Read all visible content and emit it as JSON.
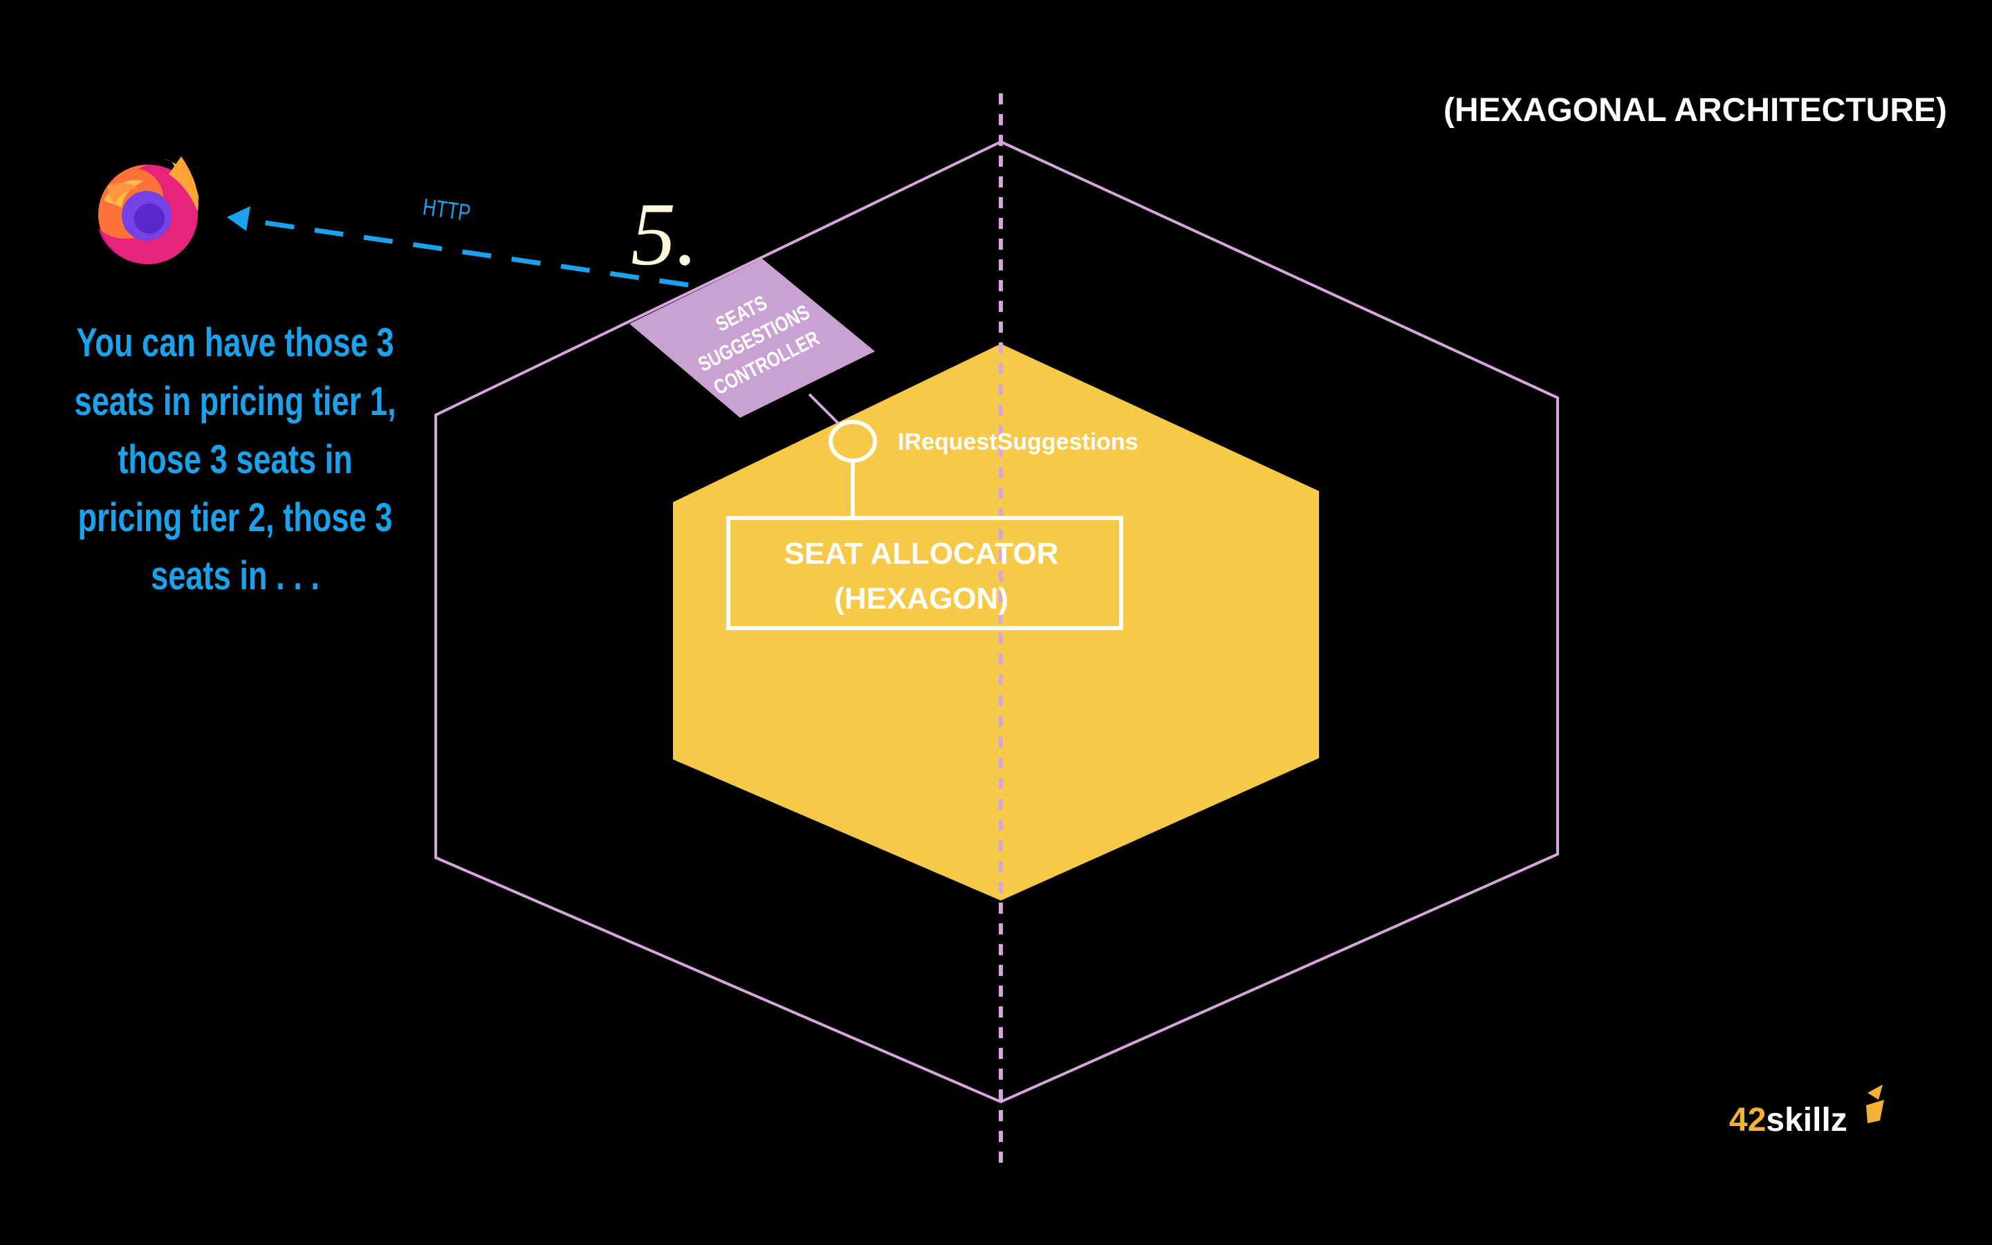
{
  "slide": {
    "title": "(HEXAGONAL ARCHITECTURE)",
    "step_number": "5.",
    "protocol_label": "HTTP",
    "response_text": [
      "You can have those 3",
      "seats in pricing tier 1,",
      "those 3 seats in",
      "pricing tier 2, those 3",
      "seats in . . ."
    ],
    "adapter_label": [
      "SEATS",
      "SUGGESTIONS",
      "CONTROLLER"
    ],
    "port_label": "IRequestSuggestions",
    "hexagon_label": [
      "SEAT ALLOCATOR",
      "(HEXAGON)"
    ],
    "logo": {
      "prefix": "42",
      "suffix": "skillz"
    }
  },
  "colors": {
    "background": "#000000",
    "outer_hexagon": "#d6a6dc",
    "inner_hexagon": "#f7c948",
    "adapter": "#c9a2d1",
    "arrow": "#1aa3ec",
    "response_text": "#1aa3ec",
    "white": "#ffffff",
    "step_number": "#fff8dc",
    "logo_prefix": "#f2b233"
  },
  "icons": {
    "browser": "firefox-icon",
    "logo_mark": "42skillz-logo-icon"
  }
}
